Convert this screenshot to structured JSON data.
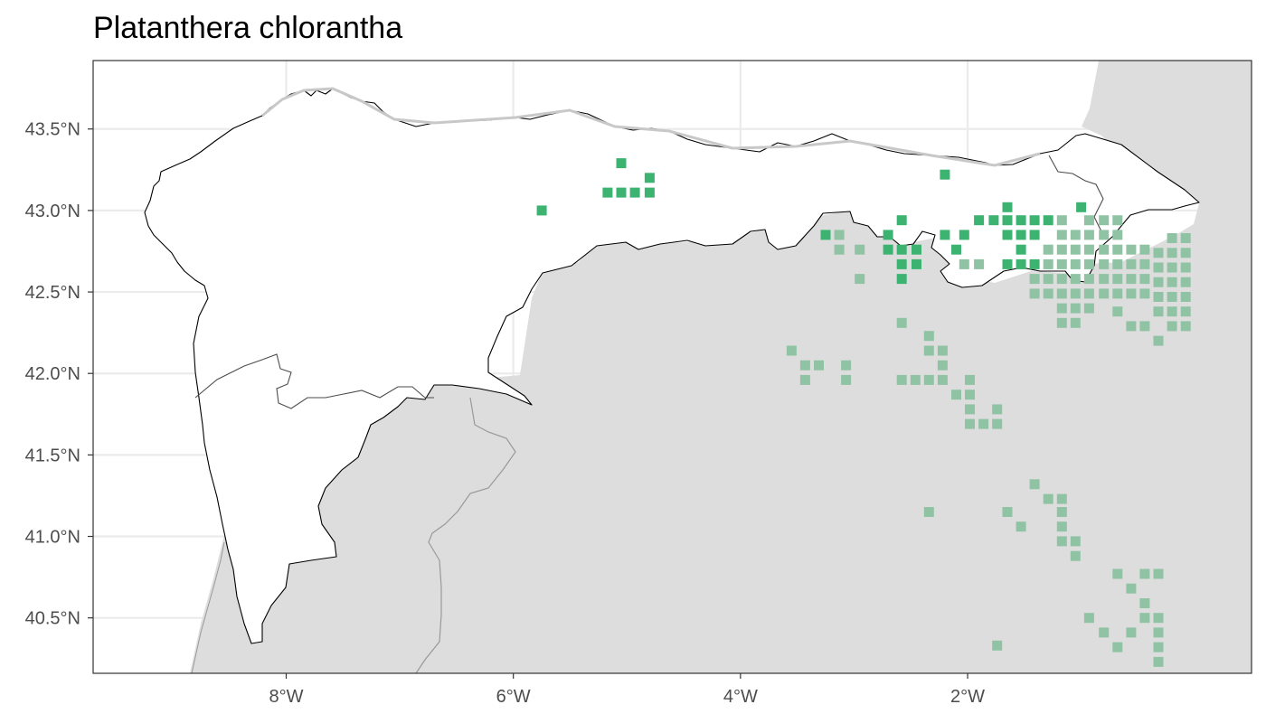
{
  "title": "Platanthera chlorantha",
  "colors": {
    "inside_region": "#3cb371",
    "outside_region": "#8fc3a4",
    "land_outside": "#dddddd",
    "region_fill": "#ffffff",
    "grid": "#ebebeb",
    "border": "#333333"
  },
  "chart_data": {
    "type": "scatter",
    "title": "Platanthera chlorantha",
    "xlim": [
      -9.7,
      0.5
    ],
    "ylim": [
      40.16,
      43.92
    ],
    "x_ticks": [
      -8,
      -6,
      -4,
      -2
    ],
    "x_tick_labels": [
      "8°W",
      "6°W",
      "4°W",
      "2°W"
    ],
    "y_ticks": [
      40.5,
      41.0,
      41.5,
      42.0,
      42.5,
      43.0,
      43.5
    ],
    "y_tick_labels": [
      "40.5°N",
      "41.0°N",
      "41.5°N",
      "42.0°N",
      "42.5°N",
      "43.0°N",
      "43.5°N"
    ],
    "grid": true,
    "series": [
      {
        "key": "inside",
        "points": [
          [
            -5.75,
            43.0
          ],
          [
            -5.05,
            43.29
          ],
          [
            -4.8,
            43.2
          ],
          [
            -5.17,
            43.11
          ],
          [
            -5.05,
            43.11
          ],
          [
            -4.93,
            43.11
          ],
          [
            -4.8,
            43.11
          ],
          [
            -2.2,
            43.22
          ],
          [
            -1.65,
            43.02
          ],
          [
            -1.0,
            43.02
          ],
          [
            -3.25,
            42.85
          ],
          [
            -2.58,
            42.94
          ],
          [
            -2.7,
            42.85
          ],
          [
            -2.2,
            42.85
          ],
          [
            -2.7,
            42.76
          ],
          [
            -2.58,
            42.76
          ],
          [
            -2.45,
            42.76
          ],
          [
            -2.58,
            42.67
          ],
          [
            -2.45,
            42.67
          ],
          [
            -2.58,
            42.58
          ],
          [
            -1.9,
            42.94
          ],
          [
            -1.77,
            42.94
          ],
          [
            -1.65,
            42.94
          ],
          [
            -1.53,
            42.94
          ],
          [
            -1.41,
            42.94
          ],
          [
            -1.29,
            42.94
          ],
          [
            -2.03,
            42.85
          ],
          [
            -1.65,
            42.85
          ],
          [
            -1.53,
            42.85
          ],
          [
            -1.41,
            42.85
          ],
          [
            -2.1,
            42.76
          ],
          [
            -1.53,
            42.76
          ],
          [
            -1.65,
            42.67
          ],
          [
            -1.53,
            42.67
          ],
          [
            -1.41,
            42.67
          ]
        ]
      },
      {
        "key": "outside",
        "points": [
          [
            -3.13,
            42.85
          ],
          [
            -3.13,
            42.76
          ],
          [
            -2.95,
            42.76
          ],
          [
            -2.95,
            42.58
          ],
          [
            -2.58,
            42.31
          ],
          [
            -2.03,
            42.67
          ],
          [
            -1.9,
            42.67
          ],
          [
            -1.17,
            42.94
          ],
          [
            -0.93,
            42.94
          ],
          [
            -0.8,
            42.94
          ],
          [
            -0.68,
            42.94
          ],
          [
            -1.17,
            42.85
          ],
          [
            -1.05,
            42.85
          ],
          [
            -0.93,
            42.85
          ],
          [
            -0.8,
            42.85
          ],
          [
            -0.68,
            42.85
          ],
          [
            -0.2,
            42.83
          ],
          [
            -0.08,
            42.83
          ],
          [
            -1.29,
            42.76
          ],
          [
            -1.17,
            42.76
          ],
          [
            -1.05,
            42.76
          ],
          [
            -0.93,
            42.76
          ],
          [
            -0.8,
            42.76
          ],
          [
            -0.68,
            42.76
          ],
          [
            -0.56,
            42.76
          ],
          [
            -0.44,
            42.76
          ],
          [
            -0.32,
            42.74
          ],
          [
            -0.2,
            42.74
          ],
          [
            -0.08,
            42.74
          ],
          [
            -1.29,
            42.67
          ],
          [
            -1.17,
            42.67
          ],
          [
            -1.05,
            42.67
          ],
          [
            -0.93,
            42.67
          ],
          [
            -0.8,
            42.67
          ],
          [
            -0.68,
            42.67
          ],
          [
            -0.56,
            42.67
          ],
          [
            -0.44,
            42.67
          ],
          [
            -0.32,
            42.65
          ],
          [
            -0.2,
            42.65
          ],
          [
            -0.08,
            42.65
          ],
          [
            -1.41,
            42.58
          ],
          [
            -1.29,
            42.58
          ],
          [
            -1.17,
            42.58
          ],
          [
            -1.05,
            42.58
          ],
          [
            -0.93,
            42.58
          ],
          [
            -0.8,
            42.58
          ],
          [
            -0.68,
            42.58
          ],
          [
            -0.56,
            42.58
          ],
          [
            -0.44,
            42.58
          ],
          [
            -0.32,
            42.56
          ],
          [
            -0.2,
            42.56
          ],
          [
            -0.08,
            42.56
          ],
          [
            -1.41,
            42.49
          ],
          [
            -1.29,
            42.49
          ],
          [
            -1.17,
            42.49
          ],
          [
            -1.05,
            42.49
          ],
          [
            -0.93,
            42.49
          ],
          [
            -0.8,
            42.49
          ],
          [
            -0.68,
            42.49
          ],
          [
            -0.56,
            42.49
          ],
          [
            -0.44,
            42.49
          ],
          [
            -0.32,
            42.47
          ],
          [
            -0.2,
            42.47
          ],
          [
            -0.08,
            42.47
          ],
          [
            -1.17,
            42.4
          ],
          [
            -1.05,
            42.4
          ],
          [
            -0.93,
            42.4
          ],
          [
            -0.68,
            42.38
          ],
          [
            -0.32,
            42.38
          ],
          [
            -0.2,
            42.38
          ],
          [
            -0.08,
            42.38
          ],
          [
            -1.17,
            42.31
          ],
          [
            -1.05,
            42.31
          ],
          [
            -0.56,
            42.29
          ],
          [
            -0.44,
            42.29
          ],
          [
            -0.2,
            42.29
          ],
          [
            -0.08,
            42.29
          ],
          [
            -0.32,
            42.2
          ],
          [
            -3.55,
            42.14
          ],
          [
            -3.43,
            42.05
          ],
          [
            -3.31,
            42.05
          ],
          [
            -3.07,
            42.05
          ],
          [
            -3.43,
            41.96
          ],
          [
            -3.07,
            41.96
          ],
          [
            -2.34,
            42.23
          ],
          [
            -2.34,
            42.14
          ],
          [
            -2.22,
            42.14
          ],
          [
            -2.22,
            42.05
          ],
          [
            -2.58,
            41.96
          ],
          [
            -2.46,
            41.96
          ],
          [
            -2.34,
            41.96
          ],
          [
            -2.22,
            41.96
          ],
          [
            -2.1,
            41.87
          ],
          [
            -1.98,
            41.96
          ],
          [
            -1.98,
            41.87
          ],
          [
            -1.98,
            41.78
          ],
          [
            -1.98,
            41.69
          ],
          [
            -1.86,
            41.69
          ],
          [
            -1.74,
            41.69
          ],
          [
            -1.74,
            41.78
          ],
          [
            -1.41,
            41.32
          ],
          [
            -1.29,
            41.23
          ],
          [
            -1.17,
            41.23
          ],
          [
            -2.34,
            41.15
          ],
          [
            -1.65,
            41.15
          ],
          [
            -1.53,
            41.06
          ],
          [
            -1.17,
            41.15
          ],
          [
            -1.17,
            41.06
          ],
          [
            -1.17,
            40.97
          ],
          [
            -1.05,
            40.97
          ],
          [
            -1.05,
            40.88
          ],
          [
            -0.68,
            40.77
          ],
          [
            -0.44,
            40.77
          ],
          [
            -0.32,
            40.77
          ],
          [
            -0.56,
            40.68
          ],
          [
            -0.44,
            40.59
          ],
          [
            -0.93,
            40.5
          ],
          [
            -0.44,
            40.5
          ],
          [
            -0.32,
            40.5
          ],
          [
            -0.8,
            40.41
          ],
          [
            -0.56,
            40.41
          ],
          [
            -0.32,
            40.41
          ],
          [
            -0.68,
            40.32
          ],
          [
            -0.32,
            40.32
          ],
          [
            -0.32,
            40.23
          ],
          [
            -1.74,
            40.33
          ]
        ]
      }
    ]
  }
}
